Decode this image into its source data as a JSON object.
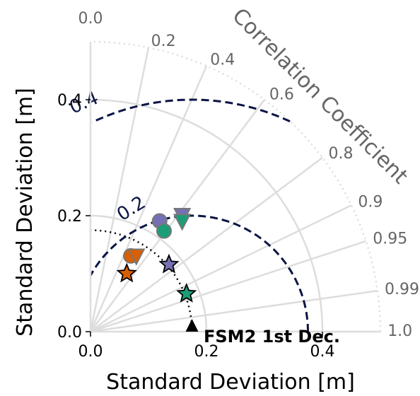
{
  "chart_data": {
    "type": "scatter",
    "subtype": "taylor-diagram",
    "xlabel": "Standard Deviation [m]",
    "ylabel": "Standard Deviation [m]",
    "angular_label": "Correlation Coefficient",
    "xlim": [
      0,
      0.5
    ],
    "ylim": [
      0,
      0.5
    ],
    "x_ticks": [
      "0.0",
      "0.2",
      "0.4"
    ],
    "y_ticks": [
      "0.0",
      "0.2",
      "0.4"
    ],
    "correlation_ticks": [
      {
        "value": 0.0,
        "label": "0.0"
      },
      {
        "value": 0.2,
        "label": "0.2"
      },
      {
        "value": 0.4,
        "label": "0.4"
      },
      {
        "value": 0.6,
        "label": "0.6"
      },
      {
        "value": 0.8,
        "label": "0.8"
      },
      {
        "value": 0.9,
        "label": "0.9"
      },
      {
        "value": 0.95,
        "label": "0.95"
      },
      {
        "value": 0.99,
        "label": "0.99"
      },
      {
        "value": 1.0,
        "label": "1.0"
      }
    ],
    "crmsd_contours": [
      {
        "value": 0.2,
        "label": "0.2"
      },
      {
        "value": 0.4,
        "label": "0.4"
      }
    ],
    "reference": {
      "label": "FSM2 1st Dec.",
      "std": 0.175,
      "marker": "triangle-up",
      "color": "#000000"
    },
    "points": [
      {
        "std": 0.225,
        "corr": 0.53,
        "marker": "circle",
        "color": "#7570b3"
      },
      {
        "std": 0.255,
        "corr": 0.62,
        "marker": "triangle-down",
        "color": "#7570b3"
      },
      {
        "std": 0.215,
        "corr": 0.59,
        "marker": "circle",
        "color": "#1b9e77"
      },
      {
        "std": 0.247,
        "corr": 0.64,
        "marker": "triangle-down",
        "color": "#1b9e77"
      },
      {
        "std": 0.148,
        "corr": 0.47,
        "marker": "circle",
        "color": "#d95f02"
      },
      {
        "std": 0.152,
        "corr": 0.52,
        "marker": "triangle-down",
        "color": "#d95f02"
      },
      {
        "std": 0.118,
        "corr": 0.53,
        "marker": "star",
        "color": "#d95f02"
      },
      {
        "std": 0.178,
        "corr": 0.76,
        "marker": "star",
        "color": "#7570b3"
      },
      {
        "std": 0.178,
        "corr": 0.93,
        "marker": "star",
        "color": "#1b9e77"
      }
    ]
  }
}
